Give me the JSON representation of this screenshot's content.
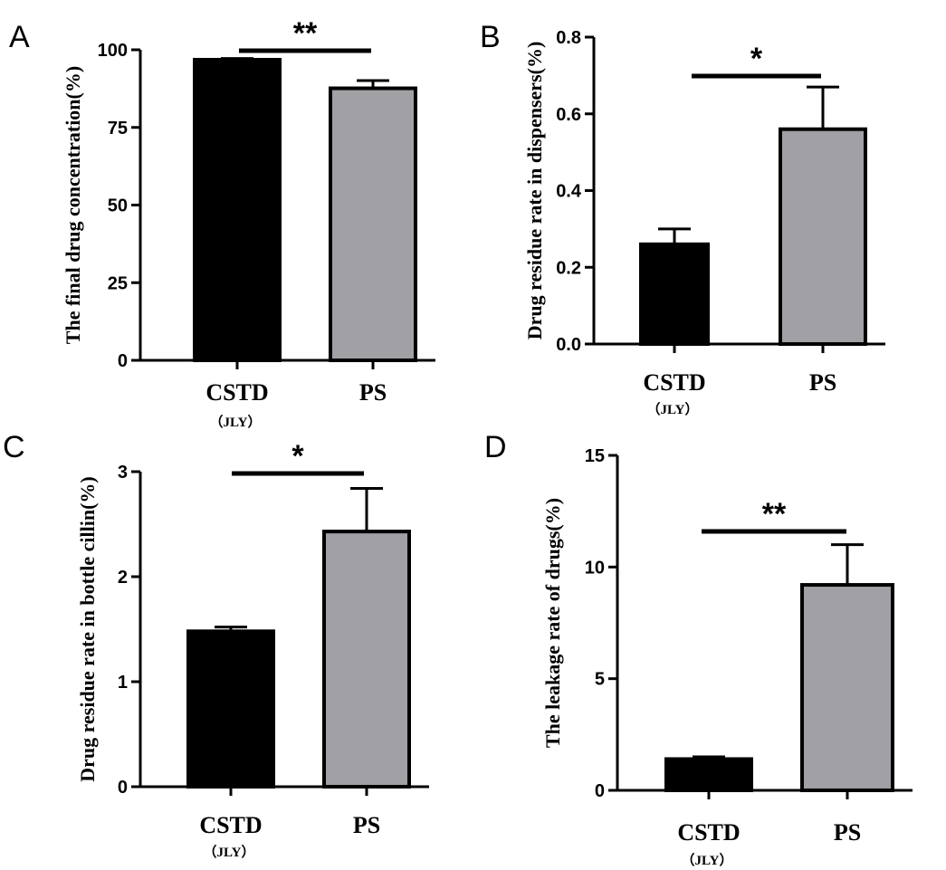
{
  "chart_data": [
    {
      "panel": "A",
      "type": "bar",
      "ylabel": "The final drug concentration(%)",
      "ylim": [
        0,
        100
      ],
      "yticks": [
        "0",
        "25",
        "50",
        "75",
        "100"
      ],
      "categories": [
        "CSTD",
        "PS"
      ],
      "category_sub": [
        "（JLY）",
        ""
      ],
      "values": [
        96.8,
        87.6
      ],
      "errors": [
        0.4,
        2.5
      ],
      "colors": [
        "#000000",
        "#a0a0a5"
      ],
      "significance": "**"
    },
    {
      "panel": "B",
      "type": "bar",
      "ylabel": "Drug residue rate in dispensers(%)",
      "ylim": [
        0,
        0.8
      ],
      "yticks": [
        "0.0",
        "0.2",
        "0.4",
        "0.6",
        "0.8"
      ],
      "categories": [
        "CSTD",
        "PS"
      ],
      "category_sub": [
        "（JLY）",
        ""
      ],
      "values": [
        0.26,
        0.56
      ],
      "errors": [
        0.04,
        0.11
      ],
      "colors": [
        "#000000",
        "#a0a0a5"
      ],
      "significance": "*"
    },
    {
      "panel": "C",
      "type": "bar",
      "ylabel": "Drug residue rate in bottle cillin(%)",
      "ylim": [
        0,
        3
      ],
      "yticks": [
        "0",
        "1",
        "2",
        "3"
      ],
      "categories": [
        "CSTD",
        "PS"
      ],
      "category_sub": [
        "（JLY）",
        ""
      ],
      "values": [
        1.48,
        2.43
      ],
      "errors": [
        0.04,
        0.41
      ],
      "colors": [
        "#000000",
        "#a0a0a5"
      ],
      "significance": "*"
    },
    {
      "panel": "D",
      "type": "bar",
      "ylabel": "The leakage rate of drugs(%)",
      "ylim": [
        0,
        15
      ],
      "yticks": [
        "0",
        "5",
        "10",
        "15"
      ],
      "categories": [
        "CSTD",
        "PS"
      ],
      "category_sub": [
        "（JLY）",
        ""
      ],
      "values": [
        1.4,
        9.2
      ],
      "errors": [
        0.1,
        1.8
      ],
      "colors": [
        "#000000",
        "#a0a0a5"
      ],
      "significance": "**"
    }
  ]
}
